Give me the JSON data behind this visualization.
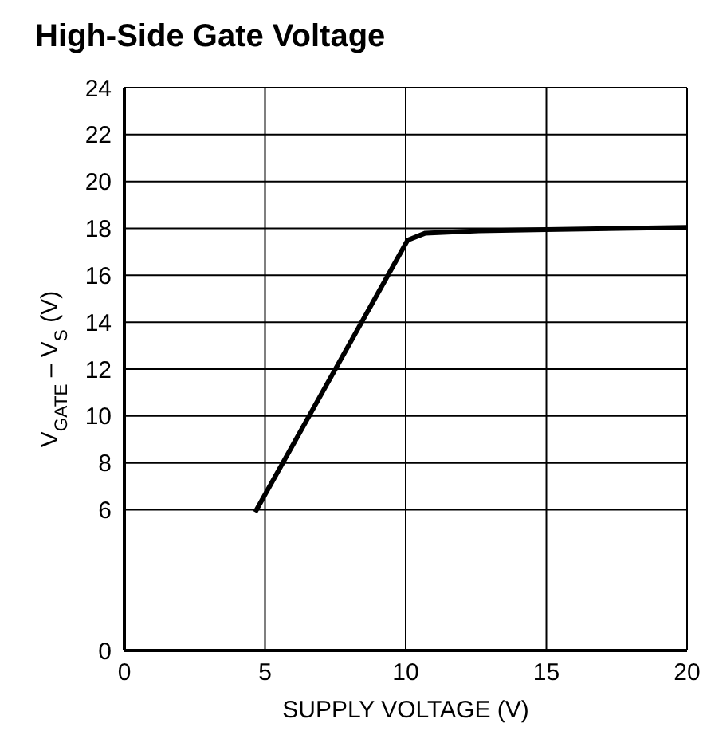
{
  "chart_data": {
    "type": "line",
    "title": "High-Side Gate Voltage",
    "xlabel": "SUPPLY VOLTAGE (V)",
    "ylabel": "V$_{GATE}$ – V$_{S}$ (V)",
    "x": [
      4.65,
      10.07,
      10.7,
      12.6,
      15,
      20
    ],
    "series": [
      {
        "color": "#000000",
        "values": [
          5.9,
          17.5,
          17.8,
          17.9,
          17.95,
          18.04
        ]
      }
    ],
    "xlim": [
      0,
      20
    ],
    "xticks": [
      0,
      5,
      10,
      15,
      20
    ],
    "ylim": [
      0,
      24
    ],
    "yticks": [
      0,
      6,
      8,
      10,
      12,
      14,
      16,
      18,
      20,
      22,
      24
    ],
    "grid": true,
    "marker": "none",
    "line_style": "solid",
    "legend": false
  }
}
